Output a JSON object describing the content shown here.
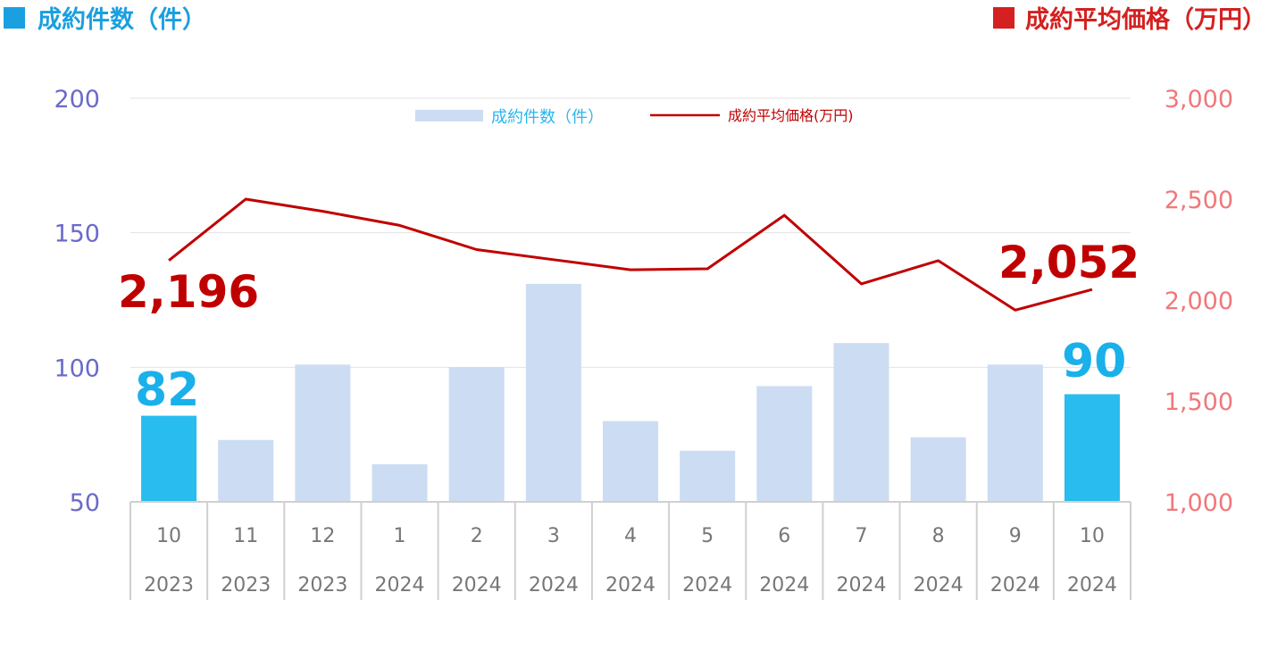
{
  "header": {
    "left_title": "成約件数（件）",
    "right_title": "成約平均価格（万円）",
    "left_marker_color": "#1a9fe0",
    "right_marker_color": "#d42020"
  },
  "chart_data": {
    "type": "bar",
    "categories": [
      {
        "month": "10",
        "year": "2023"
      },
      {
        "month": "11",
        "year": "2023"
      },
      {
        "month": "12",
        "year": "2023"
      },
      {
        "month": "1",
        "year": "2024"
      },
      {
        "month": "2",
        "year": "2024"
      },
      {
        "month": "3",
        "year": "2024"
      },
      {
        "month": "4",
        "year": "2024"
      },
      {
        "month": "5",
        "year": "2024"
      },
      {
        "month": "6",
        "year": "2024"
      },
      {
        "month": "7",
        "year": "2024"
      },
      {
        "month": "8",
        "year": "2024"
      },
      {
        "month": "9",
        "year": "2024"
      },
      {
        "month": "10",
        "year": "2024"
      }
    ],
    "series": [
      {
        "name": "成約件数（件）",
        "type": "bar",
        "axis": "left",
        "values": [
          82,
          73,
          101,
          64,
          100,
          131,
          80,
          69,
          93,
          109,
          74,
          101,
          90
        ],
        "color": "#ccdcf2",
        "highlight_color": "#29bcee",
        "highlight_indices": [
          0,
          12
        ]
      },
      {
        "name": "成約平均価格(万円)",
        "type": "line",
        "axis": "right",
        "values": [
          2196,
          2500,
          2440,
          2370,
          2250,
          2200,
          2150,
          2155,
          2420,
          2080,
          2195,
          1950,
          2052
        ],
        "color": "#c00000"
      }
    ],
    "y_left": {
      "min": 50,
      "max": 200,
      "ticks": [
        "200",
        "150",
        "100",
        "50"
      ],
      "tick_values": [
        200,
        150,
        100,
        50
      ]
    },
    "y_right": {
      "min": 1000,
      "max": 3000,
      "ticks": [
        "3,000",
        "2,500",
        "2,000",
        "1,500",
        "1,000"
      ],
      "tick_values": [
        3000,
        2500,
        2000,
        1500,
        1000
      ]
    },
    "annotations": {
      "bar_first": "82",
      "bar_last": "90",
      "line_first": "2,196",
      "line_last": "2,052"
    },
    "legend": {
      "position": "top-center",
      "bar_label": "成約件数（件）",
      "line_label": "成約平均価格(万円)"
    },
    "grid": true
  }
}
